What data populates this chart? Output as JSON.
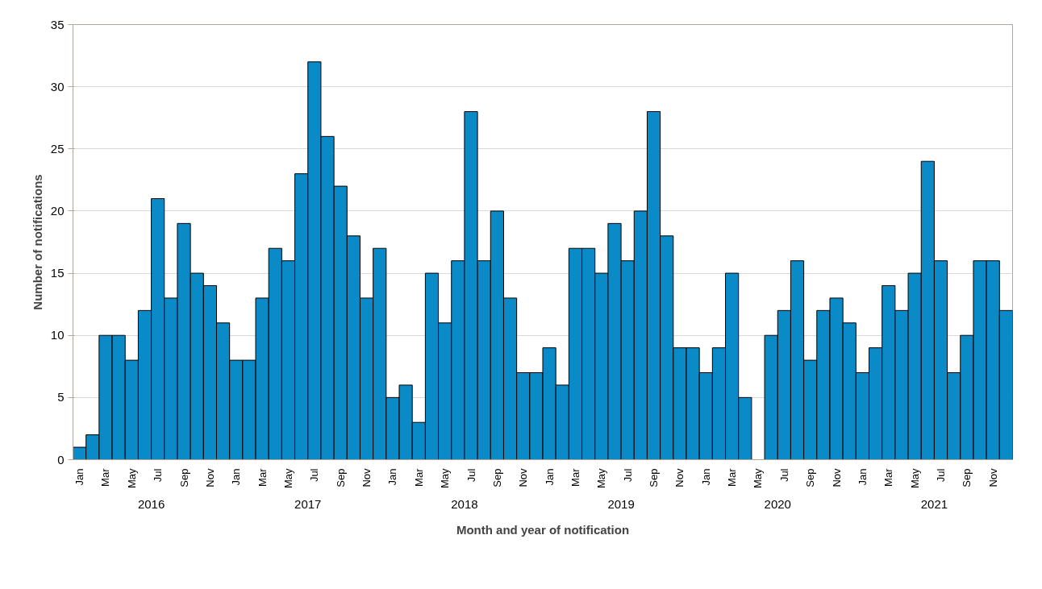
{
  "chart_data": {
    "type": "bar",
    "xlabel": "Month and year of notification",
    "ylabel": "Number of notifications",
    "categories": [
      "Jan",
      null,
      "Mar",
      null,
      "May",
      null,
      "Jul",
      null,
      "Sep",
      null,
      "Nov",
      null,
      "Jan",
      null,
      "Mar",
      null,
      "May",
      null,
      "Jul",
      null,
      "Sep",
      null,
      "Nov",
      null,
      "Jan",
      null,
      "Mar",
      null,
      "May",
      null,
      "Jul",
      null,
      "Sep",
      null,
      "Nov",
      null,
      "Jan",
      null,
      "Mar",
      null,
      "May",
      null,
      "Jul",
      null,
      "Sep",
      null,
      "Nov",
      null,
      "Jan",
      null,
      "Mar",
      null,
      "May",
      null,
      "Jul",
      null,
      "Sep",
      null,
      "Nov",
      null,
      "Jan",
      null,
      "Mar",
      null,
      "May",
      null,
      "Jul",
      null,
      "Sep",
      null,
      "Nov",
      null
    ],
    "values": [
      1,
      2,
      10,
      10,
      8,
      12,
      21,
      13,
      19,
      15,
      14,
      11,
      8,
      8,
      13,
      17,
      16,
      23,
      32,
      26,
      22,
      18,
      13,
      17,
      5,
      6,
      3,
      15,
      11,
      16,
      28,
      16,
      20,
      13,
      7,
      7,
      9,
      6,
      17,
      17,
      15,
      19,
      16,
      20,
      28,
      18,
      9,
      9,
      7,
      9,
      15,
      5,
      0,
      10,
      12,
      16,
      8,
      12,
      13,
      11,
      7,
      9,
      14,
      12,
      15,
      24,
      16,
      7,
      10,
      16,
      16,
      12
    ],
    "color": "#0a8ac6",
    "annotations": [
      "2016",
      "2017",
      "2018",
      "2019",
      "2020",
      "2021"
    ],
    "ylim": [
      0,
      35
    ],
    "yticks": [
      0,
      5,
      10,
      15,
      20,
      25,
      30,
      35
    ],
    "grid": "y"
  }
}
